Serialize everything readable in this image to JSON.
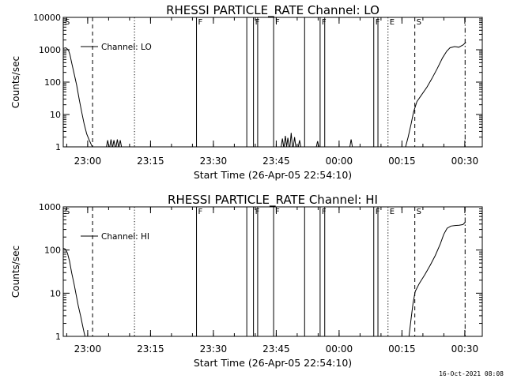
{
  "footer_timestamp": "16-Oct-2021 08:08",
  "chart_data": [
    {
      "type": "line",
      "title": "RHESSI PARTICLE_RATE Channel: LO",
      "xlabel": "Start Time (26-Apr-05 22:54:10)",
      "ylabel": "Counts/sec",
      "y_scale": "log",
      "ylim": [
        1,
        10000
      ],
      "y_ticks": [
        1,
        10,
        100,
        1000,
        10000
      ],
      "y_tick_labels": [
        "1",
        "10",
        "100",
        "1000",
        "10000"
      ],
      "x_unit": "minutes after 22:54:10",
      "xlim": [
        0,
        100
      ],
      "x_ticks": [
        5.83,
        20.83,
        35.83,
        50.83,
        65.83,
        80.83,
        95.83
      ],
      "x_tick_labels": [
        "23:00",
        "23:15",
        "23:30",
        "23:45",
        "00:00",
        "00:15",
        "00:30"
      ],
      "legend": {
        "label": "Channel: LO",
        "position": "top-left"
      },
      "markers": [
        {
          "t": 0,
          "style": "none",
          "label": "S"
        },
        {
          "t": 7,
          "style": "dashed",
          "label": ""
        },
        {
          "t": 17,
          "style": "dotted",
          "label": ""
        },
        {
          "t": 31.8,
          "style": "solid",
          "label": "F"
        },
        {
          "t": 43.8,
          "style": "solid",
          "label": ""
        },
        {
          "t": 45.4,
          "style": "solid",
          "label": "F"
        },
        {
          "t": 46.4,
          "style": "solid",
          "label": ""
        },
        {
          "t": 50.2,
          "style": "solid",
          "label": "F"
        },
        {
          "t": 57.6,
          "style": "solid",
          "label": ""
        },
        {
          "t": 61.3,
          "style": "solid",
          "label": "F"
        },
        {
          "t": 62.4,
          "style": "solid",
          "label": ""
        },
        {
          "t": 74.1,
          "style": "solid",
          "label": "F"
        },
        {
          "t": 75.1,
          "style": "solid",
          "label": ""
        },
        {
          "t": 77.5,
          "style": "dotted",
          "label": "E"
        },
        {
          "t": 83.9,
          "style": "dashed",
          "label": "S"
        },
        {
          "t": 95.9,
          "style": "dashdot",
          "label": ""
        }
      ],
      "series": [
        {
          "name": "Channel: LO",
          "x": [
            0,
            0.6,
            1.2,
            1.6,
            2.0,
            2.6,
            3.2,
            3.8,
            4.4,
            5.0,
            5.6,
            6.2,
            6.8,
            7.0
          ],
          "y": [
            1100,
            1150,
            1000,
            700,
            400,
            180,
            80,
            30,
            12,
            5,
            2.5,
            1.6,
            1.1,
            1
          ],
          "bursts": [
            {
              "t": 10.6,
              "peak": 1.6
            },
            {
              "t": 11.4,
              "peak": 1.7
            },
            {
              "t": 12.1,
              "peak": 1.6
            },
            {
              "t": 12.9,
              "peak": 1.7
            },
            {
              "t": 13.6,
              "peak": 1.6
            },
            {
              "t": 52.3,
              "peak": 1.8
            },
            {
              "t": 53.0,
              "peak": 2.2
            },
            {
              "t": 53.6,
              "peak": 1.9
            },
            {
              "t": 54.4,
              "peak": 2.7
            },
            {
              "t": 55.2,
              "peak": 2.0
            },
            {
              "t": 56.4,
              "peak": 1.6
            },
            {
              "t": 60.7,
              "peak": 1.5
            },
            {
              "t": 68.7,
              "peak": 1.7
            }
          ],
          "late_x": [
            81.7,
            82.3,
            83.0,
            83.6,
            84.4,
            85.5,
            86.8,
            88.0,
            89.3,
            90.5,
            91.5,
            92.3,
            93.4,
            94.4,
            95.4,
            96.1
          ],
          "late_y": [
            1,
            2,
            5,
            12,
            25,
            40,
            70,
            130,
            270,
            560,
            900,
            1150,
            1250,
            1200,
            1400,
            1700
          ]
        }
      ]
    },
    {
      "type": "line",
      "title": "RHESSI PARTICLE_RATE Channel: HI",
      "xlabel": "Start Time (26-Apr-05 22:54:10)",
      "ylabel": "Counts/sec",
      "y_scale": "log",
      "ylim": [
        1,
        1000
      ],
      "y_ticks": [
        1,
        10,
        100,
        1000
      ],
      "y_tick_labels": [
        "1",
        "10",
        "100",
        "1000"
      ],
      "x_unit": "minutes after 22:54:10",
      "xlim": [
        0,
        100
      ],
      "x_ticks": [
        5.83,
        20.83,
        35.83,
        50.83,
        65.83,
        80.83,
        95.83
      ],
      "x_tick_labels": [
        "23:00",
        "23:15",
        "23:30",
        "23:45",
        "00:00",
        "00:15",
        "00:30"
      ],
      "legend": {
        "label": "Channel: HI",
        "position": "top-left"
      },
      "markers": [
        {
          "t": 0,
          "style": "none",
          "label": "S"
        },
        {
          "t": 7,
          "style": "dashed",
          "label": ""
        },
        {
          "t": 17,
          "style": "dotted",
          "label": ""
        },
        {
          "t": 31.8,
          "style": "solid",
          "label": "F"
        },
        {
          "t": 43.8,
          "style": "solid",
          "label": ""
        },
        {
          "t": 45.4,
          "style": "solid",
          "label": "F"
        },
        {
          "t": 46.4,
          "style": "solid",
          "label": ""
        },
        {
          "t": 50.2,
          "style": "solid",
          "label": "F"
        },
        {
          "t": 57.6,
          "style": "solid",
          "label": ""
        },
        {
          "t": 61.3,
          "style": "solid",
          "label": "F"
        },
        {
          "t": 62.4,
          "style": "solid",
          "label": ""
        },
        {
          "t": 74.1,
          "style": "solid",
          "label": "F"
        },
        {
          "t": 75.1,
          "style": "solid",
          "label": ""
        },
        {
          "t": 77.5,
          "style": "dotted",
          "label": "E"
        },
        {
          "t": 83.9,
          "style": "dashed",
          "label": "S"
        },
        {
          "t": 95.9,
          "style": "dashdot",
          "label": ""
        }
      ],
      "series": [
        {
          "name": "Channel: HI",
          "x": [
            0,
            0.5,
            1.0,
            1.5,
            2.0,
            2.6,
            3.1,
            3.6,
            4.2,
            4.6,
            5.0,
            5.2
          ],
          "y": [
            110,
            105,
            85,
            55,
            30,
            16,
            9,
            5,
            2.8,
            1.8,
            1.2,
            1
          ],
          "bursts": [],
          "late_x": [
            82.5,
            83.0,
            83.5,
            84.0,
            85.0,
            86.3,
            87.6,
            88.8,
            90.0,
            90.8,
            91.6,
            92.5,
            93.5,
            94.5,
            95.4,
            96.0
          ],
          "late_y": [
            1,
            2.5,
            6,
            11,
            17,
            27,
            45,
            75,
            140,
            230,
            320,
            360,
            370,
            375,
            390,
            450
          ]
        }
      ]
    }
  ]
}
